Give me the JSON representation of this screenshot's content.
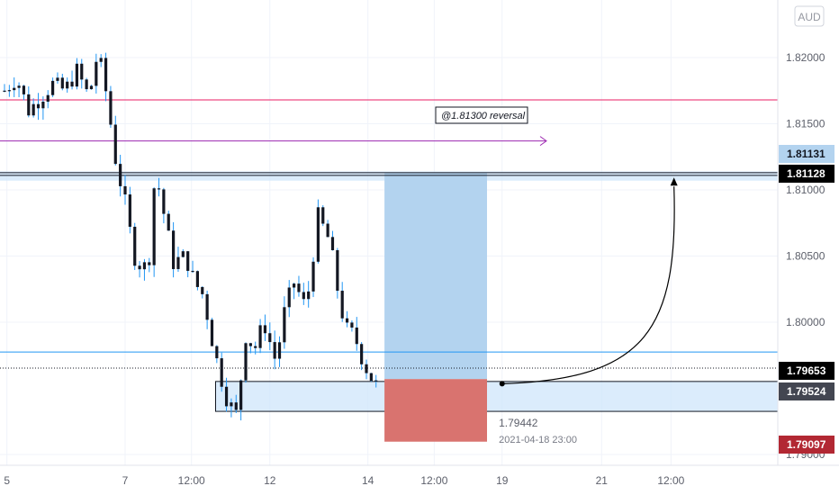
{
  "currency_badge": "AUD",
  "chart_data": {
    "type": "line",
    "series_style": "candlestick",
    "ylim": [
      1.789,
      1.8255
    ],
    "y_ticks": [
      1.82,
      1.815,
      1.81,
      1.805,
      1.8,
      1.79
    ],
    "y_tick_labels": [
      "1.82000",
      "1.81500",
      "1.81000",
      "1.80500",
      "1.80000",
      "1.79000"
    ],
    "x_ticks": [
      {
        "label": "5",
        "x": 0.08
      },
      {
        "label": "7",
        "x": 4.0
      },
      {
        "label": "12:00",
        "x": 6.2
      },
      {
        "label": "12",
        "x": 8.8
      },
      {
        "label": "14",
        "x": 12.05
      },
      {
        "label": "12:00",
        "x": 14.25
      },
      {
        "label": "19",
        "x": 16.5
      },
      {
        "label": "21",
        "x": 19.8
      },
      {
        "label": "12:00",
        "x": 22.1
      }
    ],
    "close_series": {
      "x": [
        0,
        0.4,
        0.8,
        1.2,
        1.6,
        2.0,
        2.4,
        2.8,
        3.1,
        3.4,
        3.7,
        4.0,
        4.3,
        4.6,
        4.8,
        5.0,
        5.3,
        5.6,
        6.0,
        6.3,
        6.6,
        6.85,
        7.1,
        7.4,
        7.7,
        8.0,
        8.3,
        8.6,
        9.0,
        9.3,
        9.6,
        10.0,
        10.4,
        10.8,
        11.0,
        11.3,
        11.6,
        11.9,
        12.1,
        12.4
      ],
      "y": [
        1.8175,
        1.8185,
        1.816,
        1.817,
        1.818,
        1.8175,
        1.819,
        1.817,
        1.8205,
        1.817,
        1.812,
        1.809,
        1.805,
        1.804,
        1.805,
        1.8115,
        1.808,
        1.8045,
        1.805,
        1.803,
        1.802,
        1.799,
        1.7965,
        1.794,
        1.793,
        1.799,
        1.798,
        1.8,
        1.797,
        1.801,
        1.803,
        1.801,
        1.808,
        1.806,
        1.803,
        1.7995,
        1.799,
        1.797,
        1.796,
        1.795
      ]
    },
    "horizontal_lines": [
      {
        "y": 1.8168,
        "color": "#e91e63"
      },
      {
        "y": 1.8137,
        "color": "#9c27b0",
        "arrow": true
      },
      {
        "y": 1.8113,
        "color": "#131722"
      },
      {
        "y": 1.8111,
        "color": "#131722"
      },
      {
        "y": 1.79775,
        "color": "#2196f3"
      },
      {
        "y": 1.79653,
        "color": "#131722",
        "dotted": true
      }
    ],
    "demand_zone": {
      "y_top": 1.79552,
      "y_bottom": 1.79326,
      "color": "#cfe5fb"
    },
    "supply_zone": {
      "y_top": 1.8114,
      "y_bottom": 1.8107,
      "color": "#cfe5fb"
    },
    "position": {
      "x_start": 12.6,
      "x_end": 16.0,
      "entry": 1.7957,
      "target": 1.81128,
      "stop": 1.79097,
      "profit_color": "#b3d3ef",
      "loss_color": "#d9736f"
    },
    "projection_path": {
      "from": {
        "x": 16.5,
        "y": 1.79535
      },
      "to": {
        "x": 22.2,
        "y": 1.8108
      }
    },
    "annotation": "@1.81300 reversal",
    "info_price": "1.79442",
    "info_time": "2021-04-18 23:00",
    "price_badges": [
      {
        "value": 1.81131,
        "label": "1.81131",
        "bg": "#b3d3ef",
        "fg": "#131722"
      },
      {
        "value": 1.81128,
        "label": "1.81128",
        "bg": "#000000",
        "fg": "#ffffff"
      },
      {
        "value": 1.79653,
        "label": "1.79653",
        "bg": "#000000",
        "fg": "#ffffff"
      },
      {
        "value": 1.79524,
        "label": "1.79524",
        "bg": "#434651",
        "fg": "#ffffff"
      },
      {
        "value": 1.79097,
        "label": "1.79097",
        "bg": "#b22833",
        "fg": "#ffffff"
      }
    ]
  }
}
